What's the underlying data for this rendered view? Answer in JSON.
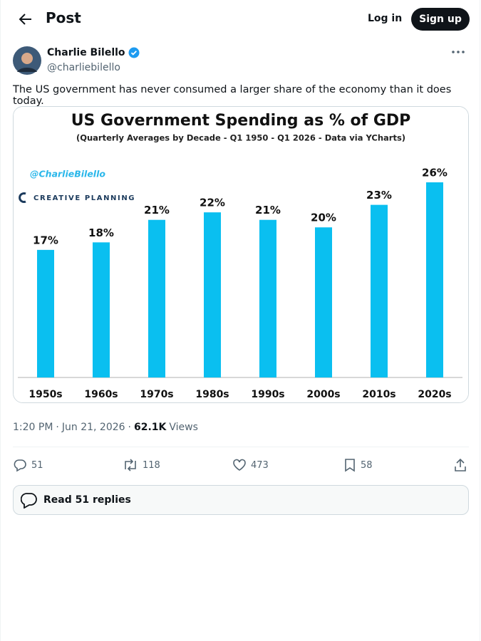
{
  "header": {
    "title": "Post",
    "login": "Log in",
    "signup": "Sign up"
  },
  "post": {
    "author": "Charlie Bilello",
    "handle": "@charliebilello",
    "text": "The US government has never consumed a larger share of the economy than it does today.",
    "time": "1:20 PM",
    "separator": "·",
    "date": "Jun 21, 2026",
    "views": "62.1K",
    "views_label": "Views",
    "replies": "51",
    "reposts": "118",
    "likes": "473",
    "bookmarks": "58",
    "read_replies": "Read 51 replies"
  },
  "chart_data": {
    "type": "bar",
    "title": "US Government Spending as % of GDP",
    "subtitle": "(Quarterly Averages by Decade - Q1 1950 - Q1 2026 - Data via YCharts)",
    "watermark": "@CharlieBilello",
    "logo": "CREATIVE PLANNING",
    "categories": [
      "1950s",
      "1960s",
      "1970s",
      "1980s",
      "1990s",
      "2000s",
      "2010s",
      "2020s"
    ],
    "values": [
      17,
      18,
      21,
      22,
      21,
      20,
      23,
      26
    ],
    "value_labels": [
      "17%",
      "18%",
      "21%",
      "22%",
      "21%",
      "20%",
      "23%",
      "26%"
    ],
    "color": "#0abff0"
  }
}
